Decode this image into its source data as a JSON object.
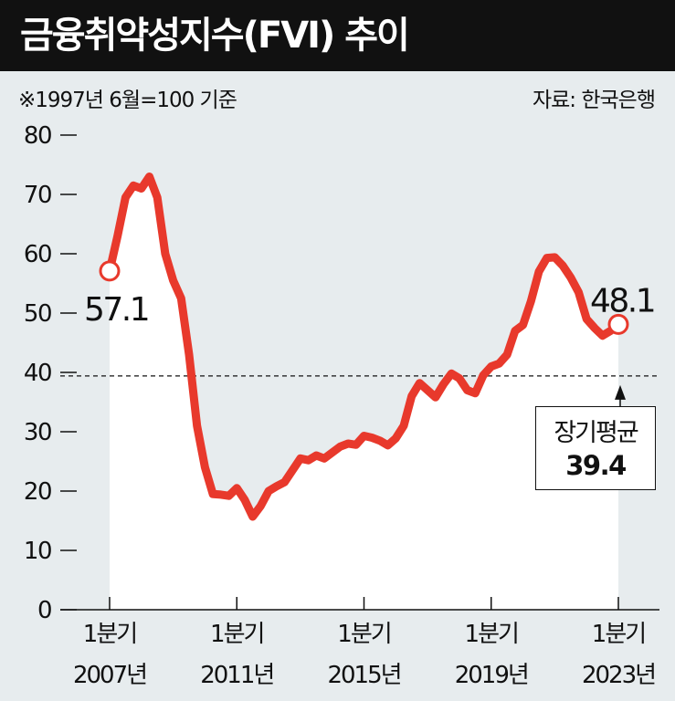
{
  "header": {
    "title": "금융취약성지수(FVI) 추이",
    "note": "※1997년 6월=100 기준",
    "source": "자료: 한국은행"
  },
  "chart_data": {
    "type": "area",
    "title": "금융취약성지수(FVI) 추이",
    "xlabel": "",
    "ylabel": "",
    "ylim": [
      0,
      80
    ],
    "yticks": [
      "0",
      "10",
      "20",
      "30",
      "40",
      "50",
      "60",
      "70",
      "80"
    ],
    "xticks": [
      {
        "x": 2007.0,
        "line1": "1분기",
        "line2": "2007년"
      },
      {
        "x": 2011.0,
        "line1": "1분기",
        "line2": "2011년"
      },
      {
        "x": 2015.0,
        "line1": "1분기",
        "line2": "2015년"
      },
      {
        "x": 2019.0,
        "line1": "1분기",
        "line2": "2019년"
      },
      {
        "x": 2023.0,
        "line1": "1분기",
        "line2": "2023년"
      }
    ],
    "grid": false,
    "series": [
      {
        "name": "",
        "x": [
          2007.0,
          2007.25,
          2007.5,
          2007.75,
          2008.0,
          2008.25,
          2008.5,
          2008.75,
          2009.0,
          2009.25,
          2009.5,
          2009.75,
          2010.0,
          2010.25,
          2010.5,
          2010.75,
          2011.0,
          2011.25,
          2011.5,
          2011.75,
          2012.0,
          2012.25,
          2012.5,
          2012.75,
          2013.0,
          2013.25,
          2013.5,
          2013.75,
          2014.0,
          2014.25,
          2014.5,
          2014.75,
          2015.0,
          2015.25,
          2015.5,
          2015.75,
          2016.0,
          2016.25,
          2016.5,
          2016.75,
          2017.0,
          2017.25,
          2017.5,
          2017.75,
          2018.0,
          2018.25,
          2018.5,
          2018.75,
          2019.0,
          2019.25,
          2019.5,
          2019.75,
          2020.0,
          2020.25,
          2020.5,
          2020.75,
          2021.0,
          2021.25,
          2021.5,
          2021.75,
          2022.0,
          2022.25,
          2022.5,
          2022.75,
          2023.0
        ],
        "values": [
          57.1,
          63.0,
          69.5,
          71.5,
          71.0,
          73.0,
          69.5,
          60.0,
          55.5,
          52.5,
          43.0,
          31.0,
          24.0,
          19.5,
          19.4,
          19.2,
          20.5,
          18.5,
          15.7,
          17.5,
          20.0,
          20.8,
          21.5,
          23.5,
          25.5,
          25.2,
          26.0,
          25.5,
          26.5,
          27.5,
          28.0,
          27.8,
          29.3,
          29.0,
          28.5,
          27.7,
          28.9,
          31.0,
          36.0,
          38.2,
          37.0,
          35.8,
          38.0,
          39.8,
          39.0,
          37.0,
          36.5,
          39.5,
          41.0,
          41.5,
          43.0,
          47.0,
          48.0,
          52.0,
          57.0,
          59.3,
          59.4,
          58.0,
          56.0,
          53.5,
          49.0,
          47.5,
          46.2,
          47.0,
          48.1
        ]
      }
    ],
    "reference_line": {
      "value": 39.4,
      "style": "dashed"
    },
    "annotations": {
      "start_value": "57.1",
      "end_value": "48.1",
      "avg_label": "장기평균",
      "avg_value": "39.4"
    },
    "colors": {
      "line": "#e8392c",
      "area": "#ffffff",
      "background": "#e7ecee",
      "header": "#111111"
    }
  }
}
